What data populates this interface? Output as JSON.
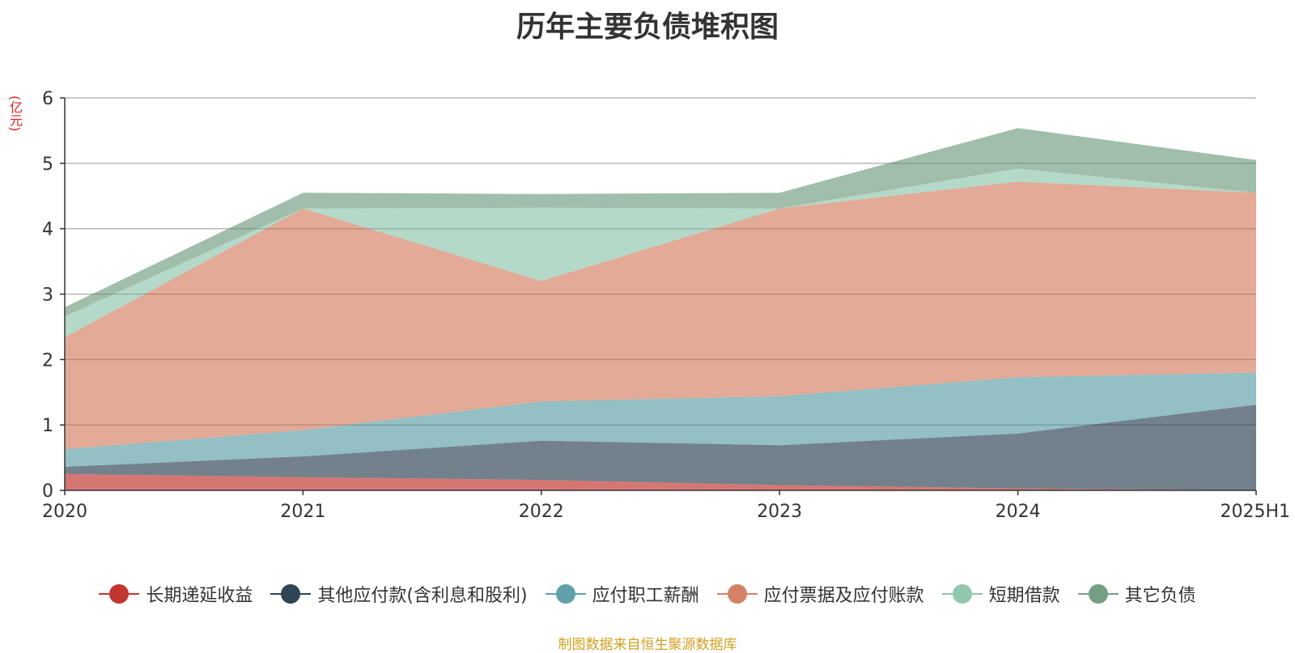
{
  "chart_data": {
    "type": "area",
    "stacked": true,
    "title": "历年主要负债堆积图",
    "y_unit": "(亿元)",
    "categories": [
      "2020",
      "2021",
      "2022",
      "2023",
      "2024",
      "2025H1"
    ],
    "ylim": [
      0,
      6
    ],
    "yticks": [
      "0",
      "1",
      "2",
      "3",
      "4",
      "5",
      "6"
    ],
    "grid": true,
    "legend_position": "bottom",
    "series": [
      {
        "name": "长期递延收益",
        "color": "#c23531",
        "values": [
          0.25,
          0.2,
          0.16,
          0.08,
          0.03,
          0.0
        ]
      },
      {
        "name": "其他应付款(含利息和股利)",
        "color": "#2f4554",
        "values": [
          0.11,
          0.32,
          0.6,
          0.61,
          0.84,
          1.31
        ]
      },
      {
        "name": "应付职工薪酬",
        "color": "#61a0a8",
        "values": [
          0.27,
          0.4,
          0.6,
          0.75,
          0.86,
          0.49
        ]
      },
      {
        "name": "应付票据及应付账款",
        "color": "#d48265",
        "values": [
          1.71,
          3.39,
          1.84,
          2.87,
          2.99,
          2.75
        ]
      },
      {
        "name": "短期借款",
        "color": "#91c7ae",
        "values": [
          0.32,
          0.0,
          1.12,
          0.0,
          0.2,
          0.0
        ]
      },
      {
        "name": "其它负债",
        "color": "#749f83",
        "values": [
          0.14,
          0.24,
          0.21,
          0.24,
          0.62,
          0.5
        ]
      }
    ]
  },
  "footer": {
    "source": "制图数据来自恒生聚源数据库"
  }
}
